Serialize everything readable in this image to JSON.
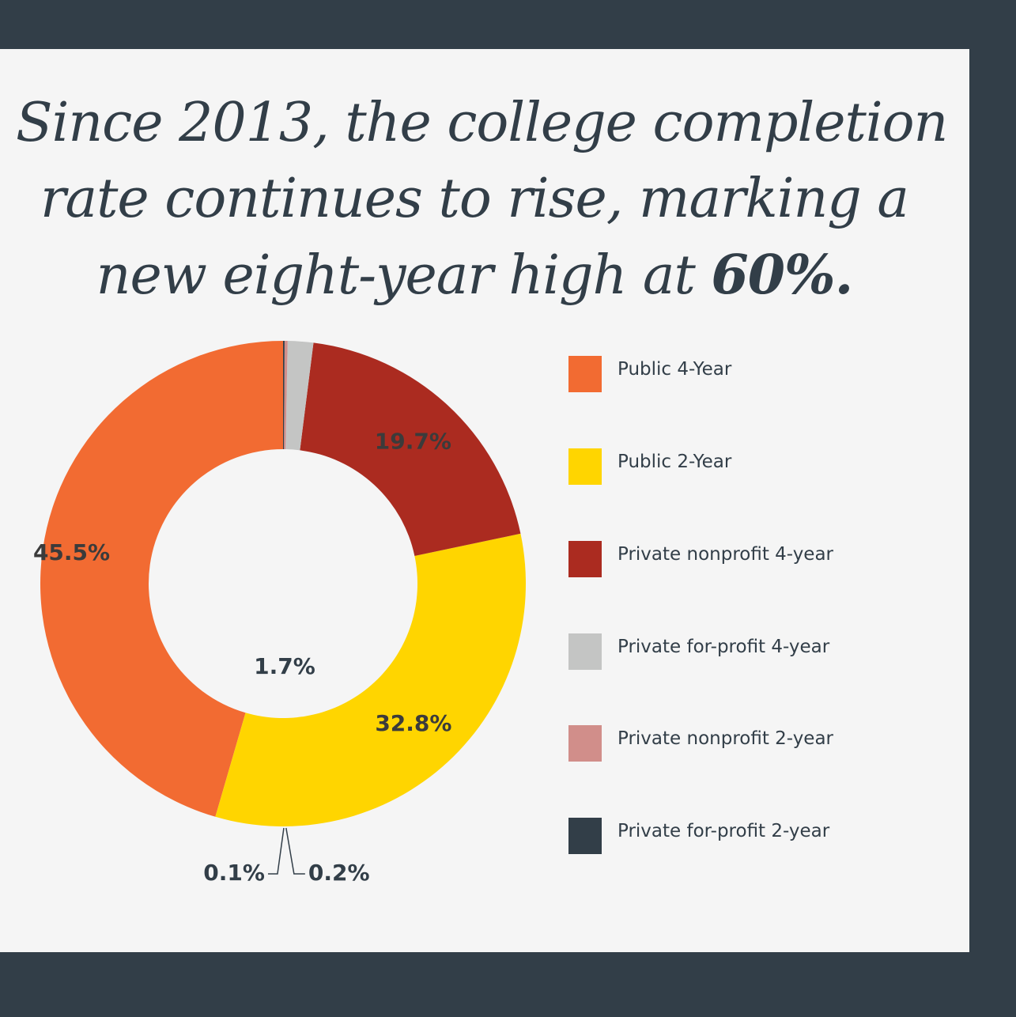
{
  "headline": {
    "line1": "Since 2013, the college completion",
    "line2": "rate continues to rise, marking a",
    "line3_prefix": "new eight-year high at ",
    "line3_emphasis": "60%."
  },
  "chart_data": {
    "type": "pie",
    "variant": "donut",
    "start": "top, counter-clockwise from Public 4-Year",
    "series": [
      {
        "name": "Public 4-Year",
        "value": 45.5,
        "label": "45.5%",
        "color": "#f26b32"
      },
      {
        "name": "Public 2-Year",
        "value": 32.8,
        "label": "32.8%",
        "color": "#ffd500"
      },
      {
        "name": "Private nonprofit 4-year",
        "value": 19.7,
        "label": "19.7%",
        "color": "#ab2b20"
      },
      {
        "name": "Private for-profit 4-year",
        "value": 1.7,
        "label": "1.7%",
        "color": "#c4c5c4"
      },
      {
        "name": "Private nonprofit 2-year",
        "value": 0.2,
        "label": "0.2%",
        "color": "#d18e8a"
      },
      {
        "name": "Private for-profit 2-year",
        "value": 0.1,
        "label": "0.1%",
        "color": "#323e48"
      }
    ],
    "legend_position": "right"
  }
}
